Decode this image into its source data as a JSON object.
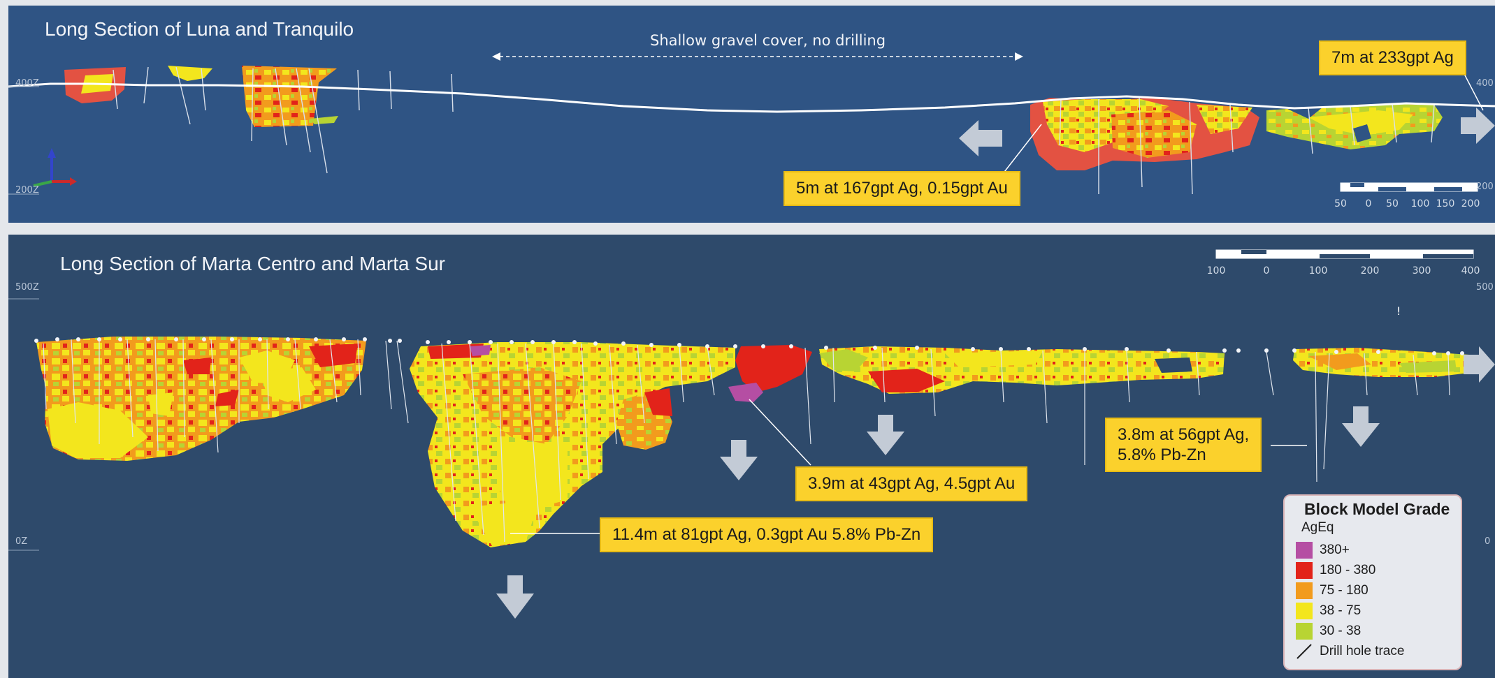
{
  "top_section": {
    "title": "Long Section of Luna and Tranquilo",
    "gravel_note": "Shallow gravel cover, no drilling",
    "z_labels": [
      "400Z",
      "200Z",
      "400",
      "200"
    ],
    "scale_labels": [
      "50",
      "0",
      "50",
      "100",
      "150",
      "200"
    ],
    "callouts": [
      {
        "text": "7m at 233gpt Ag"
      },
      {
        "text": "5m at 167gpt Ag, 0.15gpt Au"
      }
    ]
  },
  "bottom_section": {
    "title": "Long Section of Marta Centro and Marta Sur",
    "z_labels": [
      "500Z",
      "0Z",
      "500",
      "0"
    ],
    "scale_labels": [
      "100",
      "0",
      "100",
      "200",
      "300",
      "400"
    ],
    "marker": "!",
    "callouts": [
      {
        "text": "3.9m at 43gpt Ag, 4.5gpt Au"
      },
      {
        "text": "11.4m at 81gpt Ag, 0.3gpt Au 5.8% Pb-Zn"
      },
      {
        "line1": "3.8m at 56gpt Ag,",
        "line2": "5.8% Pb-Zn"
      }
    ]
  },
  "legend": {
    "title": "Block Model Grade",
    "subtitle": "AgEq",
    "items": [
      {
        "label": "380+",
        "color": "#b54ea3"
      },
      {
        "label": "180 - 380",
        "color": "#e2231a"
      },
      {
        "label": "75 - 180",
        "color": "#f29b1d"
      },
      {
        "label": "38 - 75",
        "color": "#f3e61d"
      },
      {
        "label": "30 - 38",
        "color": "#b8d433"
      }
    ],
    "drill_label": "Drill hole trace"
  },
  "colors": {
    "top_bg": "#2f5484",
    "bottom_bg": "#2e4a6b",
    "callout": "#fbd12c",
    "arrow": "#c3cbd6"
  }
}
